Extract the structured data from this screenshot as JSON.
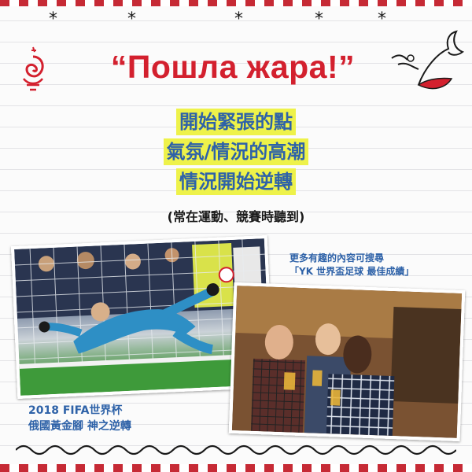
{
  "stars": [
    "*",
    "*",
    "*",
    "*",
    "*"
  ],
  "title": "“Пошла жара!”",
  "meanings": [
    "開始緊張的點",
    "氣氛/情況的高潮",
    "情況開始逆轉"
  ],
  "note": "(常在運動、競賽時聽到)",
  "photo_left": {
    "icon": "goalkeeper-save-photo",
    "caption_line1": "2018 FIFA世界杯",
    "caption_line2": "俄國黃金腳 神之逆轉"
  },
  "photo_right": {
    "icon": "fans-cheering-photo",
    "caption_line1": "更多有趣的內容可搜尋",
    "caption_line2": "「YK 世界盃足球 最佳成績」"
  },
  "colors": {
    "title": "#d3202e",
    "highlight": "#eef24a",
    "text_blue": "#2e62a8",
    "border": "#c62a35"
  }
}
